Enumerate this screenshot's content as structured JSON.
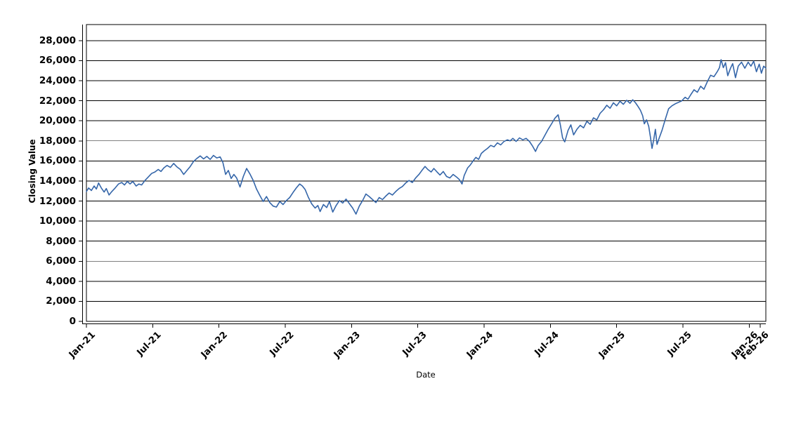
{
  "chart_data": {
    "type": "line",
    "title": "",
    "xlabel": "Date",
    "ylabel": "Closing Value",
    "legend": "none",
    "grid": "horizontal-only",
    "background_color": "#ffffff",
    "grid_color": "#000000",
    "axis_color": "#000000",
    "xlim_months_from_jan21": [
      0,
      61.5
    ],
    "ylim": [
      0,
      29600
    ],
    "x_ticks": [
      {
        "m": 0,
        "label": "Jan-21"
      },
      {
        "m": 6,
        "label": "Jul-21"
      },
      {
        "m": 12,
        "label": "Jan-22"
      },
      {
        "m": 18,
        "label": "Jul-22"
      },
      {
        "m": 24,
        "label": "Jan-23"
      },
      {
        "m": 30,
        "label": "Jul-23"
      },
      {
        "m": 36,
        "label": "Jan-24"
      },
      {
        "m": 42,
        "label": "Jul-24"
      },
      {
        "m": 48,
        "label": "Jan-25"
      },
      {
        "m": 54,
        "label": "Jul-25"
      },
      {
        "m": 60,
        "label": "Jan-26"
      },
      {
        "m": 61,
        "label": "Feb-26"
      }
    ],
    "y_ticks": [
      {
        "v": 0,
        "label": "0"
      },
      {
        "v": 2000,
        "label": "2,000"
      },
      {
        "v": 4000,
        "label": "4,000"
      },
      {
        "v": 6000,
        "label": "6,000"
      },
      {
        "v": 8000,
        "label": "8,000"
      },
      {
        "v": 10000,
        "label": "10,000"
      },
      {
        "v": 12000,
        "label": "12,000"
      },
      {
        "v": 14000,
        "label": "14,000"
      },
      {
        "v": 16000,
        "label": "16,000"
      },
      {
        "v": 18000,
        "label": "18,000"
      },
      {
        "v": 20000,
        "label": "20,000"
      },
      {
        "v": 22000,
        "label": "22,000"
      },
      {
        "v": 24000,
        "label": "24,000"
      },
      {
        "v": 26000,
        "label": "26,000"
      },
      {
        "v": 28000,
        "label": "28,000"
      }
    ],
    "series": [
      {
        "name": "Closing Value",
        "color": "#3566a9",
        "points": [
          [
            0,
            12950
          ],
          [
            0.2,
            13300
          ],
          [
            0.45,
            13050
          ],
          [
            0.7,
            13500
          ],
          [
            0.9,
            13200
          ],
          [
            1.1,
            13800
          ],
          [
            1.35,
            13300
          ],
          [
            1.6,
            12900
          ],
          [
            1.8,
            13250
          ],
          [
            2.05,
            12600
          ],
          [
            2.3,
            12950
          ],
          [
            2.6,
            13300
          ],
          [
            2.9,
            13700
          ],
          [
            3.2,
            13850
          ],
          [
            3.45,
            13600
          ],
          [
            3.7,
            13950
          ],
          [
            3.95,
            13700
          ],
          [
            4.2,
            13950
          ],
          [
            4.5,
            13500
          ],
          [
            4.75,
            13700
          ],
          [
            5.0,
            13600
          ],
          [
            5.3,
            14050
          ],
          [
            5.6,
            14400
          ],
          [
            5.9,
            14750
          ],
          [
            6.2,
            14900
          ],
          [
            6.5,
            15150
          ],
          [
            6.75,
            14950
          ],
          [
            7.0,
            15300
          ],
          [
            7.3,
            15550
          ],
          [
            7.6,
            15350
          ],
          [
            7.9,
            15750
          ],
          [
            8.2,
            15400
          ],
          [
            8.5,
            15150
          ],
          [
            8.8,
            14650
          ],
          [
            9.1,
            15050
          ],
          [
            9.4,
            15450
          ],
          [
            9.7,
            15950
          ],
          [
            10.0,
            16250
          ],
          [
            10.3,
            16500
          ],
          [
            10.6,
            16200
          ],
          [
            10.9,
            16450
          ],
          [
            11.2,
            16150
          ],
          [
            11.5,
            16550
          ],
          [
            11.8,
            16300
          ],
          [
            12.1,
            16400
          ],
          [
            12.35,
            15850
          ],
          [
            12.6,
            14650
          ],
          [
            12.85,
            15050
          ],
          [
            13.1,
            14250
          ],
          [
            13.35,
            14650
          ],
          [
            13.6,
            14300
          ],
          [
            13.9,
            13400
          ],
          [
            14.2,
            14450
          ],
          [
            14.5,
            15250
          ],
          [
            14.8,
            14700
          ],
          [
            15.1,
            14050
          ],
          [
            15.4,
            13200
          ],
          [
            15.7,
            12550
          ],
          [
            16.0,
            11950
          ],
          [
            16.3,
            12450
          ],
          [
            16.6,
            11850
          ],
          [
            16.9,
            11500
          ],
          [
            17.2,
            11400
          ],
          [
            17.5,
            11950
          ],
          [
            17.8,
            11650
          ],
          [
            18.1,
            12050
          ],
          [
            18.4,
            12350
          ],
          [
            18.7,
            12850
          ],
          [
            19.0,
            13300
          ],
          [
            19.3,
            13700
          ],
          [
            19.55,
            13500
          ],
          [
            19.8,
            13150
          ],
          [
            20.1,
            12350
          ],
          [
            20.4,
            11700
          ],
          [
            20.7,
            11300
          ],
          [
            20.95,
            11550
          ],
          [
            21.15,
            10950
          ],
          [
            21.45,
            11650
          ],
          [
            21.75,
            11350
          ],
          [
            22.0,
            11950
          ],
          [
            22.3,
            10900
          ],
          [
            22.6,
            11550
          ],
          [
            22.9,
            12050
          ],
          [
            23.2,
            11800
          ],
          [
            23.5,
            12200
          ],
          [
            23.8,
            11750
          ],
          [
            24.1,
            11300
          ],
          [
            24.4,
            10700
          ],
          [
            24.7,
            11500
          ],
          [
            25.0,
            12050
          ],
          [
            25.3,
            12700
          ],
          [
            25.6,
            12450
          ],
          [
            25.9,
            12150
          ],
          [
            26.2,
            11850
          ],
          [
            26.5,
            12350
          ],
          [
            26.8,
            12150
          ],
          [
            27.1,
            12500
          ],
          [
            27.4,
            12800
          ],
          [
            27.7,
            12600
          ],
          [
            28.0,
            12950
          ],
          [
            28.3,
            13250
          ],
          [
            28.6,
            13450
          ],
          [
            28.9,
            13800
          ],
          [
            29.2,
            14050
          ],
          [
            29.5,
            13850
          ],
          [
            29.8,
            14300
          ],
          [
            30.1,
            14650
          ],
          [
            30.4,
            15100
          ],
          [
            30.65,
            15450
          ],
          [
            30.9,
            15150
          ],
          [
            31.2,
            14900
          ],
          [
            31.45,
            15250
          ],
          [
            31.7,
            14950
          ],
          [
            32.0,
            14600
          ],
          [
            32.3,
            14950
          ],
          [
            32.6,
            14450
          ],
          [
            32.9,
            14300
          ],
          [
            33.2,
            14650
          ],
          [
            33.5,
            14400
          ],
          [
            33.75,
            14150
          ],
          [
            34.0,
            13700
          ],
          [
            34.2,
            14550
          ],
          [
            34.5,
            15300
          ],
          [
            34.75,
            15600
          ],
          [
            35.0,
            16000
          ],
          [
            35.25,
            16350
          ],
          [
            35.5,
            16150
          ],
          [
            35.75,
            16750
          ],
          [
            36.0,
            17000
          ],
          [
            36.3,
            17250
          ],
          [
            36.6,
            17550
          ],
          [
            36.9,
            17400
          ],
          [
            37.2,
            17800
          ],
          [
            37.5,
            17600
          ],
          [
            37.8,
            17950
          ],
          [
            38.1,
            18100
          ],
          [
            38.35,
            18000
          ],
          [
            38.6,
            18250
          ],
          [
            38.9,
            17950
          ],
          [
            39.2,
            18300
          ],
          [
            39.5,
            18100
          ],
          [
            39.8,
            18250
          ],
          [
            40.1,
            17950
          ],
          [
            40.4,
            17450
          ],
          [
            40.65,
            16950
          ],
          [
            40.9,
            17550
          ],
          [
            41.2,
            17950
          ],
          [
            41.5,
            18550
          ],
          [
            41.8,
            19150
          ],
          [
            42.1,
            19700
          ],
          [
            42.4,
            20250
          ],
          [
            42.7,
            20600
          ],
          [
            42.9,
            19600
          ],
          [
            43.1,
            18300
          ],
          [
            43.3,
            17900
          ],
          [
            43.6,
            19050
          ],
          [
            43.85,
            19600
          ],
          [
            44.1,
            18600
          ],
          [
            44.4,
            19150
          ],
          [
            44.7,
            19550
          ],
          [
            45.0,
            19300
          ],
          [
            45.3,
            19950
          ],
          [
            45.6,
            19650
          ],
          [
            45.9,
            20300
          ],
          [
            46.2,
            20100
          ],
          [
            46.5,
            20750
          ],
          [
            46.8,
            21100
          ],
          [
            47.1,
            21550
          ],
          [
            47.4,
            21250
          ],
          [
            47.7,
            21800
          ],
          [
            48.0,
            21500
          ],
          [
            48.3,
            21950
          ],
          [
            48.6,
            21650
          ],
          [
            48.9,
            22050
          ],
          [
            49.2,
            21750
          ],
          [
            49.45,
            22100
          ],
          [
            49.7,
            21800
          ],
          [
            49.95,
            21400
          ],
          [
            50.15,
            21050
          ],
          [
            50.35,
            20500
          ],
          [
            50.5,
            19700
          ],
          [
            50.7,
            20100
          ],
          [
            50.9,
            19450
          ],
          [
            51.05,
            18400
          ],
          [
            51.2,
            17250
          ],
          [
            51.35,
            18100
          ],
          [
            51.5,
            19150
          ],
          [
            51.65,
            17650
          ],
          [
            51.85,
            18300
          ],
          [
            52.1,
            19050
          ],
          [
            52.4,
            20150
          ],
          [
            52.7,
            21200
          ],
          [
            53.0,
            21500
          ],
          [
            53.3,
            21700
          ],
          [
            53.6,
            21850
          ],
          [
            53.9,
            22000
          ],
          [
            54.2,
            22350
          ],
          [
            54.45,
            22150
          ],
          [
            54.7,
            22600
          ],
          [
            55.0,
            23100
          ],
          [
            55.3,
            22850
          ],
          [
            55.6,
            23450
          ],
          [
            55.9,
            23150
          ],
          [
            56.2,
            23900
          ],
          [
            56.5,
            24550
          ],
          [
            56.8,
            24400
          ],
          [
            57.1,
            24900
          ],
          [
            57.3,
            25300
          ],
          [
            57.45,
            26100
          ],
          [
            57.65,
            25300
          ],
          [
            57.85,
            25800
          ],
          [
            58.05,
            24500
          ],
          [
            58.3,
            25250
          ],
          [
            58.5,
            25700
          ],
          [
            58.75,
            24300
          ],
          [
            59.0,
            25450
          ],
          [
            59.3,
            25850
          ],
          [
            59.6,
            25250
          ],
          [
            59.9,
            25850
          ],
          [
            60.15,
            25450
          ],
          [
            60.4,
            25950
          ],
          [
            60.65,
            24900
          ],
          [
            60.9,
            25650
          ],
          [
            61.1,
            24750
          ],
          [
            61.3,
            25450
          ],
          [
            61.5,
            25250
          ]
        ]
      }
    ]
  }
}
